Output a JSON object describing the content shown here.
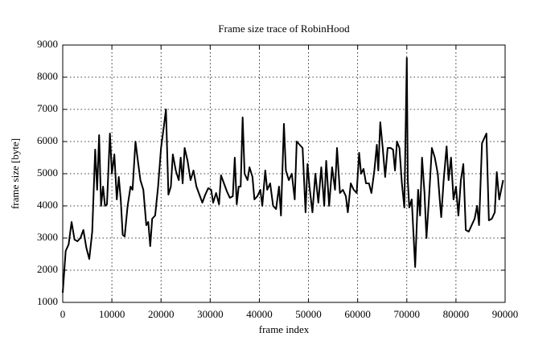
{
  "chart_data": {
    "type": "line",
    "title": "Frame size trace of RobinHood",
    "xlabel": "frame index",
    "ylabel": "frame size [byte]",
    "color": "#000000",
    "grid": true,
    "xlim": [
      0,
      90000
    ],
    "xticks": [
      0,
      10000,
      20000,
      30000,
      40000,
      50000,
      60000,
      70000,
      80000,
      90000
    ],
    "ylim": [
      1000,
      9000
    ],
    "yticks": [
      1000,
      2000,
      3000,
      4000,
      5000,
      6000,
      7000,
      8000,
      9000
    ],
    "x": [
      0,
      600,
      1200,
      1800,
      2400,
      3000,
      3600,
      4200,
      4800,
      5400,
      6000,
      6600,
      7000,
      7400,
      7800,
      8200,
      8600,
      9000,
      9600,
      10000,
      10500,
      11000,
      11400,
      11800,
      12200,
      12600,
      13200,
      13800,
      14200,
      14800,
      15200,
      15800,
      16400,
      17000,
      17400,
      17800,
      18200,
      18800,
      19400,
      20000,
      20600,
      21000,
      21500,
      22000,
      22400,
      23000,
      23600,
      24000,
      24400,
      24800,
      25400,
      26000,
      26600,
      27200,
      27800,
      28400,
      29000,
      29600,
      30200,
      30600,
      31200,
      31800,
      32200,
      32800,
      33400,
      34000,
      34600,
      35000,
      35400,
      35800,
      36200,
      36600,
      37000,
      37600,
      38000,
      38600,
      39000,
      39600,
      40200,
      40600,
      41200,
      41600,
      42200,
      42800,
      43400,
      44000,
      44400,
      45000,
      45400,
      46000,
      46600,
      47200,
      47600,
      48200,
      48800,
      49400,
      49800,
      50200,
      50800,
      51400,
      52000,
      52600,
      53200,
      53600,
      54200,
      54800,
      55400,
      55800,
      56400,
      57000,
      57600,
      58000,
      58600,
      59200,
      59800,
      60300,
      60700,
      61200,
      61700,
      62300,
      62800,
      63400,
      63900,
      64200,
      64600,
      65100,
      65600,
      66100,
      66700,
      67200,
      67600,
      68000,
      68500,
      69000,
      69500,
      70000,
      70200,
      70500,
      71000,
      71700,
      72300,
      72700,
      73100,
      73600,
      74000,
      74500,
      75100,
      75700,
      76300,
      76700,
      77000,
      77500,
      78100,
      78500,
      79000,
      79500,
      80000,
      80500,
      81000,
      81500,
      82000,
      82600,
      83200,
      83800,
      84300,
      84700,
      85300,
      86200,
      86700,
      87300,
      87900,
      88300,
      88800,
      89600
    ],
    "values": [
      1300,
      2600,
      2800,
      3500,
      2950,
      2900,
      3000,
      3250,
      2700,
      2350,
      3200,
      5750,
      4500,
      6200,
      4000,
      4600,
      4000,
      4050,
      6250,
      5000,
      5600,
      4200,
      4900,
      4200,
      3100,
      3050,
      4000,
      4600,
      4500,
      6000,
      5500,
      4800,
      4500,
      3400,
      3500,
      2750,
      3600,
      3700,
      4600,
      5800,
      6500,
      7000,
      4350,
      4600,
      5600,
      5100,
      4800,
      5500,
      4700,
      5800,
      5400,
      4800,
      5100,
      4600,
      4350,
      4100,
      4350,
      4550,
      4500,
      4100,
      4400,
      4050,
      4950,
      4700,
      4450,
      4250,
      4300,
      5500,
      4050,
      4600,
      4600,
      6750,
      5000,
      4800,
      5200,
      4900,
      4200,
      4300,
      4500,
      4000,
      5100,
      4500,
      4700,
      4000,
      3900,
      4600,
      3700,
      6550,
      5100,
      4800,
      5000,
      4200,
      6000,
      5900,
      5800,
      3800,
      5300,
      4600,
      3800,
      5000,
      4100,
      5200,
      4000,
      5400,
      4000,
      5200,
      4500,
      5800,
      4400,
      4500,
      4300,
      3800,
      4700,
      4500,
      4400,
      5650,
      5000,
      5150,
      4700,
      4700,
      4400,
      5100,
      5900,
      5100,
      6600,
      5800,
      4900,
      5800,
      5800,
      5750,
      5100,
      6000,
      5800,
      4700,
      3950,
      8600,
      4800,
      3950,
      4200,
      2100,
      4500,
      3700,
      5500,
      4400,
      3000,
      4200,
      5800,
      5500,
      5000,
      4200,
      3650,
      4800,
      5850,
      4800,
      5500,
      4200,
      4600,
      3700,
      4800,
      5300,
      3250,
      3200,
      3400,
      3600,
      4000,
      3400,
      5950,
      6250,
      3550,
      3600,
      3800,
      5050,
      4200,
      4800
    ]
  }
}
